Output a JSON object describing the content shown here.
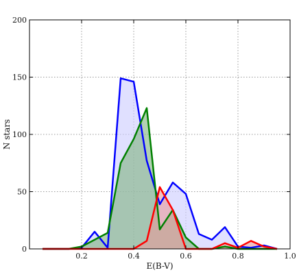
{
  "chart_data": {
    "type": "area",
    "title": "",
    "xlabel": "E(B-V)",
    "ylabel": "N stars",
    "xlim": [
      0.0,
      1.0
    ],
    "ylim": [
      0,
      200
    ],
    "x_ticks": [
      0.2,
      0.4,
      0.6,
      0.8,
      1.0
    ],
    "x_tick_labels": [
      "0.2",
      "0.4",
      "0.6",
      "0.8",
      "1.0"
    ],
    "y_ticks": [
      0,
      50,
      100,
      150,
      200
    ],
    "y_tick_labels": [
      "0",
      "50",
      "100",
      "150",
      "200"
    ],
    "grid": true,
    "legend": "none",
    "series": [
      {
        "color": "#0000ff",
        "fill": "#ccccff",
        "x": [
          0.05,
          0.1,
          0.15,
          0.2,
          0.25,
          0.3,
          0.35,
          0.4,
          0.45,
          0.5,
          0.55,
          0.6,
          0.65,
          0.7,
          0.75,
          0.8,
          0.85,
          0.9,
          0.95
        ],
        "values": [
          0,
          0,
          0,
          1,
          15,
          1,
          149,
          146,
          77,
          39,
          58,
          48,
          13,
          8,
          19,
          2,
          1,
          3,
          0
        ]
      },
      {
        "color": "#008000",
        "fill": "#7fb27f",
        "x": [
          0.05,
          0.1,
          0.15,
          0.2,
          0.25,
          0.3,
          0.35,
          0.4,
          0.45,
          0.5,
          0.55,
          0.6,
          0.65,
          0.7,
          0.75,
          0.8,
          0.85,
          0.9,
          0.95
        ],
        "values": [
          0,
          0,
          0,
          2,
          8,
          14,
          75,
          96,
          123,
          17,
          34,
          10,
          0,
          0,
          2,
          0,
          0,
          0,
          0
        ]
      },
      {
        "color": "#ff0000",
        "fill": "#e89a9a",
        "x": [
          0.05,
          0.1,
          0.15,
          0.2,
          0.25,
          0.3,
          0.35,
          0.4,
          0.45,
          0.5,
          0.55,
          0.6,
          0.65,
          0.7,
          0.75,
          0.8,
          0.85,
          0.9,
          0.95
        ],
        "values": [
          0,
          0,
          0,
          0,
          0,
          0,
          0,
          0,
          7,
          54,
          34,
          0,
          0,
          0,
          5,
          1,
          7,
          2,
          0
        ]
      }
    ]
  }
}
